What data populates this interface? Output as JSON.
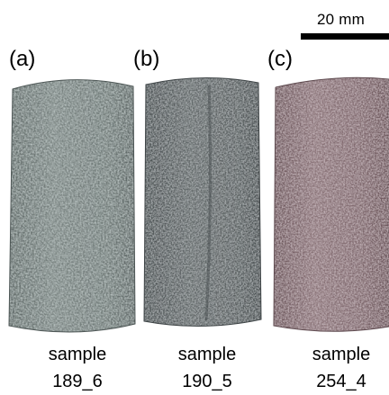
{
  "scale_bar": {
    "label": "20 mm"
  },
  "panels": [
    {
      "letter": "(a)",
      "caption_line1": "sample",
      "caption_line2": "189_6",
      "surface_color": "#6f7a78"
    },
    {
      "letter": "(b)",
      "caption_line1": "sample",
      "caption_line2": "190_5",
      "surface_color": "#5c6263"
    },
    {
      "letter": "(c)",
      "caption_line1": "sample",
      "caption_line2": "254_4",
      "surface_color": "#836b70"
    }
  ]
}
